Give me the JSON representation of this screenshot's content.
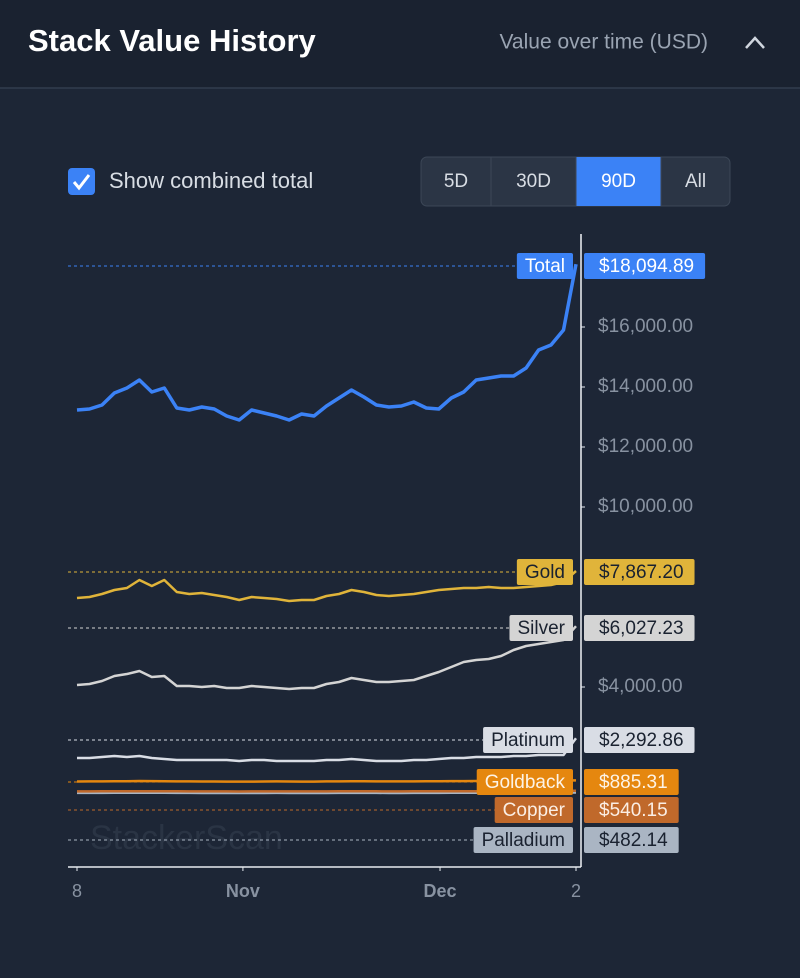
{
  "header": {
    "title": "Stack Value History",
    "subtitle": "Value over time (USD)"
  },
  "controls": {
    "checkbox_label": "Show combined total",
    "checked": true,
    "ranges": [
      "5D",
      "30D",
      "90D",
      "All"
    ],
    "active_range": 2
  },
  "watermark": "StackerScan",
  "chart_data": {
    "type": "line",
    "x": [
      0,
      1,
      2,
      3,
      4,
      5,
      6,
      7,
      8,
      9,
      10,
      11,
      12,
      13,
      14,
      15,
      16,
      17,
      18,
      19,
      20,
      21,
      22,
      23,
      24,
      25,
      26,
      27,
      28,
      29,
      30,
      31,
      32,
      33,
      34,
      35,
      36,
      37,
      38,
      39,
      40
    ],
    "xlim": [
      0,
      40
    ],
    "xticks": [
      {
        "value": 0,
        "label": "8"
      },
      {
        "value": 13.3,
        "label": "Nov"
      },
      {
        "value": 29.1,
        "label": "Dec"
      },
      {
        "value": 40,
        "label": "2"
      }
    ],
    "ylim": [
      -2000,
      19000
    ],
    "yticks": [
      {
        "value": 4000,
        "label": "$4,000.00"
      },
      {
        "value": 10000,
        "label": "$10,000.00"
      },
      {
        "value": 12000,
        "label": "$12,000.00"
      },
      {
        "value": 14000,
        "label": "$14,000.00"
      },
      {
        "value": 16000,
        "label": "$16,000.00"
      }
    ],
    "series": [
      {
        "name": "Total",
        "color": "#3b82f6",
        "values": [
          13233,
          13266,
          13400,
          13800,
          13966,
          14233,
          13833,
          13966,
          13300,
          13233,
          13333,
          13266,
          13033,
          12900,
          13233,
          13133,
          13033,
          12900,
          13100,
          13033,
          13366,
          13633,
          13900,
          13666,
          13400,
          13333,
          13366,
          13500,
          13300,
          13266,
          13633,
          13833,
          14233,
          14300,
          14366,
          14366,
          14633,
          15233,
          15400,
          15900,
          18094.89
        ],
        "value_labels": [
          null,
          null,
          null,
          null,
          null,
          null,
          null,
          null,
          null,
          null,
          null,
          null,
          null,
          null,
          null,
          null,
          null,
          null,
          null,
          null,
          null,
          null,
          null,
          null,
          null,
          null,
          null,
          null,
          null,
          null,
          null,
          null,
          null,
          null,
          null,
          null,
          null,
          null,
          null,
          null,
          "$18,094.89"
        ]
      },
      {
        "name": "Gold",
        "color": "#e0b43a",
        "values": [
          6966,
          7000,
          7100,
          7233,
          7300,
          7566,
          7366,
          7566,
          7166,
          7100,
          7133,
          7066,
          7000,
          6900,
          7000,
          6966,
          6933,
          6866,
          6900,
          6900,
          7033,
          7100,
          7233,
          7166,
          7066,
          7033,
          7066,
          7100,
          7166,
          7233,
          7266,
          7300,
          7300,
          7333,
          7300,
          7300,
          7333,
          7366,
          7400,
          7500,
          7867.2
        ],
        "value_labels": [
          null,
          null,
          null,
          null,
          null,
          null,
          null,
          null,
          null,
          null,
          null,
          null,
          null,
          null,
          null,
          null,
          null,
          null,
          null,
          null,
          null,
          null,
          null,
          null,
          null,
          null,
          null,
          null,
          null,
          null,
          null,
          null,
          null,
          null,
          null,
          null,
          null,
          null,
          null,
          null,
          "$7,867.20"
        ]
      },
      {
        "name": "Silver",
        "color": "#d4d4d4",
        "values": [
          4066,
          4100,
          4200,
          4366,
          4433,
          4533,
          4333,
          4366,
          4033,
          4033,
          4000,
          4033,
          3966,
          3966,
          4033,
          4000,
          3966,
          3933,
          3966,
          3966,
          4100,
          4166,
          4300,
          4233,
          4166,
          4166,
          4200,
          4233,
          4366,
          4500,
          4666,
          4833,
          4900,
          4933,
          5033,
          5233,
          5366,
          5433,
          5500,
          5566,
          6027.23
        ],
        "value_labels": [
          null,
          null,
          null,
          null,
          null,
          null,
          null,
          null,
          null,
          null,
          null,
          null,
          null,
          null,
          null,
          null,
          null,
          null,
          null,
          null,
          null,
          null,
          null,
          null,
          null,
          null,
          null,
          null,
          null,
          null,
          null,
          null,
          null,
          null,
          null,
          null,
          null,
          null,
          null,
          null,
          "$6,027.23"
        ]
      },
      {
        "name": "Platinum",
        "color": "#d9dde5",
        "values": [
          1633,
          1633,
          1666,
          1700,
          1666,
          1700,
          1633,
          1600,
          1566,
          1566,
          1566,
          1566,
          1566,
          1533,
          1566,
          1566,
          1533,
          1533,
          1533,
          1533,
          1566,
          1566,
          1600,
          1566,
          1533,
          1533,
          1533,
          1566,
          1566,
          1600,
          1633,
          1633,
          1666,
          1666,
          1666,
          1700,
          1700,
          1733,
          1733,
          1733,
          2292.86
        ],
        "value_labels": [
          null,
          null,
          null,
          null,
          null,
          null,
          null,
          null,
          null,
          null,
          null,
          null,
          null,
          null,
          null,
          null,
          null,
          null,
          null,
          null,
          null,
          null,
          null,
          null,
          null,
          null,
          null,
          null,
          null,
          null,
          null,
          null,
          null,
          null,
          null,
          null,
          null,
          null,
          null,
          null,
          "$2,292.86"
        ]
      },
      {
        "name": "Goldback",
        "color": "#e5870f",
        "values": [
          850,
          852,
          855,
          858,
          860,
          865,
          862,
          860,
          855,
          852,
          850,
          850,
          848,
          846,
          848,
          850,
          852,
          850,
          848,
          848,
          852,
          855,
          858,
          856,
          854,
          852,
          852,
          855,
          858,
          860,
          862,
          864,
          866,
          868,
          870,
          872,
          874,
          876,
          878,
          880,
          885.31
        ],
        "value_labels": [
          null,
          null,
          null,
          null,
          null,
          null,
          null,
          null,
          null,
          null,
          null,
          null,
          null,
          null,
          null,
          null,
          null,
          null,
          null,
          null,
          null,
          null,
          null,
          null,
          null,
          null,
          null,
          null,
          null,
          null,
          null,
          null,
          null,
          null,
          null,
          null,
          null,
          null,
          null,
          null,
          "$885.31"
        ]
      },
      {
        "name": "Copper",
        "color": "#c0692b",
        "values": [
          520,
          521,
          522,
          523,
          524,
          526,
          525,
          524,
          522,
          521,
          520,
          520,
          519,
          518,
          519,
          520,
          521,
          520,
          519,
          519,
          521,
          522,
          523,
          523,
          522,
          521,
          521,
          522,
          523,
          524,
          525,
          526,
          527,
          528,
          529,
          530,
          532,
          534,
          536,
          538,
          540.15
        ],
        "value_labels": [
          null,
          null,
          null,
          null,
          null,
          null,
          null,
          null,
          null,
          null,
          null,
          null,
          null,
          null,
          null,
          null,
          null,
          null,
          null,
          null,
          null,
          null,
          null,
          null,
          null,
          null,
          null,
          null,
          null,
          null,
          null,
          null,
          null,
          null,
          null,
          null,
          null,
          null,
          null,
          null,
          "$540.15"
        ]
      },
      {
        "name": "Palladium",
        "color": "#aab5c3",
        "values": [
          470,
          470,
          471,
          472,
          472,
          474,
          473,
          472,
          470,
          469,
          468,
          468,
          467,
          466,
          467,
          468,
          469,
          468,
          467,
          467,
          468,
          469,
          470,
          470,
          469,
          468,
          468,
          469,
          470,
          471,
          472,
          473,
          474,
          475,
          476,
          477,
          478,
          479,
          480,
          481,
          482.14
        ],
        "value_labels": [
          null,
          null,
          null,
          null,
          null,
          null,
          null,
          null,
          null,
          null,
          null,
          null,
          null,
          null,
          null,
          null,
          null,
          null,
          null,
          null,
          null,
          null,
          null,
          null,
          null,
          null,
          null,
          null,
          null,
          null,
          null,
          null,
          null,
          null,
          null,
          null,
          null,
          null,
          null,
          null,
          "$482.14"
        ]
      }
    ]
  }
}
